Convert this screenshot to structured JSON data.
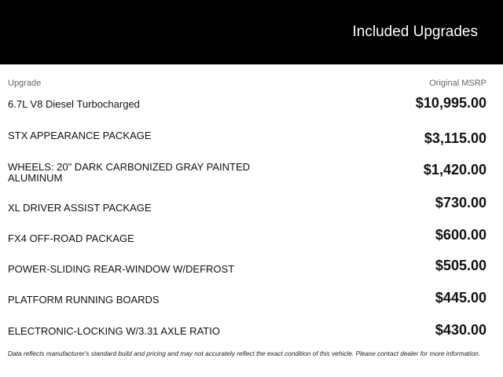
{
  "header": {
    "title": "Included Upgrades"
  },
  "columns": {
    "upgrade": "Upgrade",
    "msrp": "Original MSRP"
  },
  "upgrades": [
    {
      "name": "6.7L V8 Diesel Turbocharged",
      "price": "$10,995.00"
    },
    {
      "name": "STX APPEARANCE PACKAGE",
      "price": "$3,115.00"
    },
    {
      "name": "WHEELS: 20\" DARK CARBONIZED GRAY PAINTED ALUMINUM",
      "price": "$1,420.00"
    },
    {
      "name": "XL DRIVER ASSIST PACKAGE",
      "price": "$730.00"
    },
    {
      "name": "FX4 OFF-ROAD PACKAGE",
      "price": "$600.00"
    },
    {
      "name": "POWER-SLIDING REAR-WINDOW W/DEFROST",
      "price": "$505.00"
    },
    {
      "name": "PLATFORM RUNNING BOARDS",
      "price": "$445.00"
    },
    {
      "name": "ELECTRONIC-LOCKING W/3.31 AXLE RATIO",
      "price": "$430.00"
    }
  ],
  "disclaimer": "Data reflects manufacturer's standard build and pricing and may not accurately reflect the exact condition of this vehicle. Please contact dealer for more information."
}
